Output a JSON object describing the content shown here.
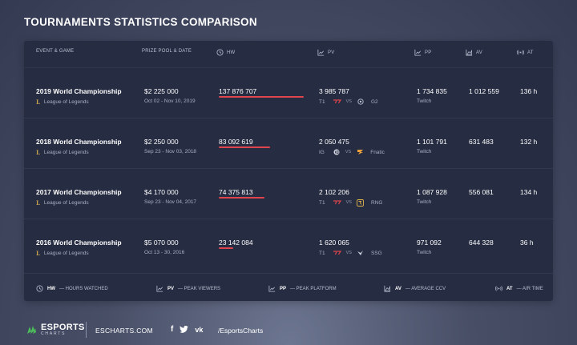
{
  "title": "TOURNAMENTS STATISTICS COMPARISON",
  "columns": {
    "event": "EVENT & GAME",
    "prize": "PRIZE POOL & DATE",
    "hw": "HW",
    "pv": "PV",
    "pp": "PP",
    "av": "AV",
    "at": "AT"
  },
  "rows": [
    {
      "event": "2019 World Championship",
      "game": "League of Legends",
      "prize": "$2 225 000",
      "dates": "Oct 02 - Nov 10, 2019",
      "hw": "137 876 707",
      "hw_share": 1.0,
      "pv": "3 985 787",
      "team1": "T1",
      "vs": "VS",
      "team2": "G2",
      "pp": "1 734 835",
      "platform": "Twitch",
      "av": "1 012 559",
      "at": "136 h"
    },
    {
      "event": "2018 World Championship",
      "game": "League of Legends",
      "prize": "$2 250 000",
      "dates": "Sep 23 - Nov 03, 2018",
      "hw": "83 092 619",
      "hw_share": 0.6,
      "pv": "2 050 475",
      "team1": "IG",
      "vs": "VS",
      "team2": "Fnatic",
      "pp": "1 101 791",
      "platform": "Twitch",
      "av": "631 483",
      "at": "132 h"
    },
    {
      "event": "2017 World Championship",
      "game": "League of Legends",
      "prize": "$4 170 000",
      "dates": "Sep 23 - Nov 04, 2017",
      "hw": "74 375 813",
      "hw_share": 0.54,
      "pv": "2 102 206",
      "team1": "T1",
      "vs": "VS",
      "team2": "RNG",
      "pp": "1 087 928",
      "platform": "Twitch",
      "av": "556 081",
      "at": "134 h"
    },
    {
      "event": "2016 World Championship",
      "game": "League of Legends",
      "prize": "$5 070 000",
      "dates": "Oct 13 - 30, 2016",
      "hw": "23 142 084",
      "hw_share": 0.17,
      "pv": "1 620 065",
      "team1": "T1",
      "vs": "VS",
      "team2": "SSG",
      "pp": "971 092",
      "platform": "Twitch",
      "av": "644 328",
      "at": "36 h"
    }
  ],
  "legend": [
    {
      "abbr": "HW",
      "text": "— HOURS WATCHED",
      "icon": "clock-icon"
    },
    {
      "abbr": "PV",
      "text": "— PEAK VIEWERS",
      "icon": "line-chart-icon"
    },
    {
      "abbr": "PP",
      "text": "— PEAK PLATFORM",
      "icon": "line-chart-icon"
    },
    {
      "abbr": "AV",
      "text": "— AVERAGE CCV",
      "icon": "area-chart-icon"
    },
    {
      "abbr": "AT",
      "text": "— AIR TIME",
      "icon": "broadcast-icon"
    }
  ],
  "footer": {
    "brand_top": "ESPORTS",
    "brand_bottom": "CHARTS",
    "site": "ESCHARTS.COM",
    "social_facebook": "f",
    "social_twitter": "t",
    "social_vk": "vk",
    "handle": "/EsportsCharts"
  },
  "colors": {
    "accent_bar": "#e0444c",
    "card": "#262c42",
    "brand_green": "#4cc05a"
  }
}
